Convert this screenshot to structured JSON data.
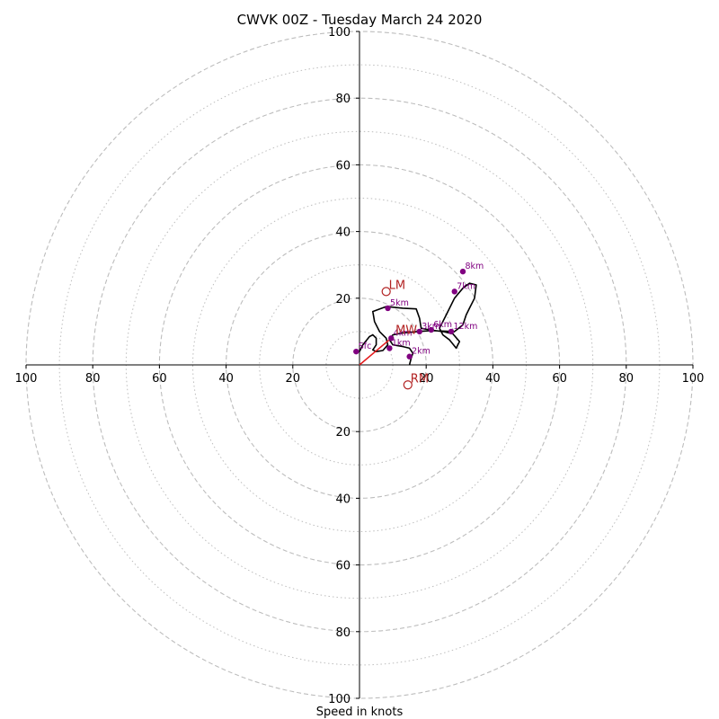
{
  "chart_data": {
    "type": "hodograph",
    "title": "CWVK 00Z - Tuesday March 24 2020",
    "xlabel": "Speed in knots",
    "units": "knots",
    "ring_max": 100,
    "rings_major": [
      20,
      40,
      60,
      80,
      100
    ],
    "rings_minor": [
      10,
      30,
      50,
      70,
      90
    ],
    "axis_ticks_right": [
      "20",
      "40",
      "60",
      "80",
      "100"
    ],
    "axis_ticks_left": [
      "100",
      "80",
      "60",
      "40",
      "20"
    ],
    "axis_ticks_up": [
      "100",
      "80",
      "60",
      "40",
      "20"
    ],
    "axis_ticks_down": [
      "20",
      "40",
      "60",
      "80",
      "100"
    ],
    "trace": [
      [
        0,
        4
      ],
      [
        1,
        6
      ],
      [
        3,
        8.5
      ],
      [
        4,
        9
      ],
      [
        5,
        8
      ],
      [
        5,
        6
      ],
      [
        4,
        4.5
      ],
      [
        5,
        4
      ],
      [
        7,
        4.3
      ],
      [
        8.5,
        6
      ],
      [
        8,
        8
      ],
      [
        6,
        10
      ],
      [
        4.5,
        13
      ],
      [
        4,
        16
      ],
      [
        8,
        17.5
      ],
      [
        13,
        17
      ],
      [
        17,
        16.8
      ],
      [
        18,
        14
      ],
      [
        18.5,
        11
      ],
      [
        21,
        10.5
      ],
      [
        25,
        10
      ],
      [
        28,
        9.3
      ],
      [
        30,
        7
      ],
      [
        29,
        5
      ],
      [
        27,
        7.5
      ],
      [
        25,
        9
      ],
      [
        24,
        11
      ],
      [
        26,
        15
      ],
      [
        28.5,
        20
      ],
      [
        31,
        23
      ],
      [
        33,
        24.5
      ],
      [
        35,
        24
      ],
      [
        34.5,
        20
      ],
      [
        33,
        17
      ],
      [
        32,
        15
      ],
      [
        31,
        12
      ],
      [
        28.5,
        10
      ],
      [
        21.5,
        10.3
      ],
      [
        17.5,
        10
      ],
      [
        13,
        9.6
      ],
      [
        10,
        9
      ],
      [
        9,
        7.5
      ],
      [
        10,
        6
      ],
      [
        13,
        5.5
      ],
      [
        15,
        5
      ],
      [
        16,
        3.5
      ],
      [
        15.5,
        2
      ],
      [
        15,
        0
      ]
    ],
    "points": [
      {
        "label": "Sfc",
        "u": -1,
        "v": 4
      },
      {
        "label": "1km",
        "u": 9,
        "v": 5
      },
      {
        "label": "2km",
        "u": 15,
        "v": 2.5
      },
      {
        "label": "3km",
        "u": 18,
        "v": 10
      },
      {
        "label": "4km",
        "u": 9.5,
        "v": 8
      },
      {
        "label": "5km",
        "u": 8.5,
        "v": 17
      },
      {
        "label": "6km",
        "u": 21.5,
        "v": 10.5
      },
      {
        "label": "7km",
        "u": 28.5,
        "v": 22
      },
      {
        "label": "8km",
        "u": 31,
        "v": 28
      },
      {
        "label": "12km",
        "u": 27.5,
        "v": 10
      }
    ],
    "motions": [
      {
        "label": "LM",
        "u": 8,
        "v": 22
      },
      {
        "label": "RM",
        "u": 14.5,
        "v": -6
      },
      {
        "label": "MW",
        "u": 10,
        "v": 8.5
      }
    ],
    "shear_vector": {
      "u": 9.5,
      "v": 8
    },
    "colors": {
      "ring": "#bdbdbd",
      "axis": "#000000",
      "trace": "#000000",
      "point": "#800080",
      "motion": "#b22222",
      "shear": "#e41a1c"
    }
  }
}
